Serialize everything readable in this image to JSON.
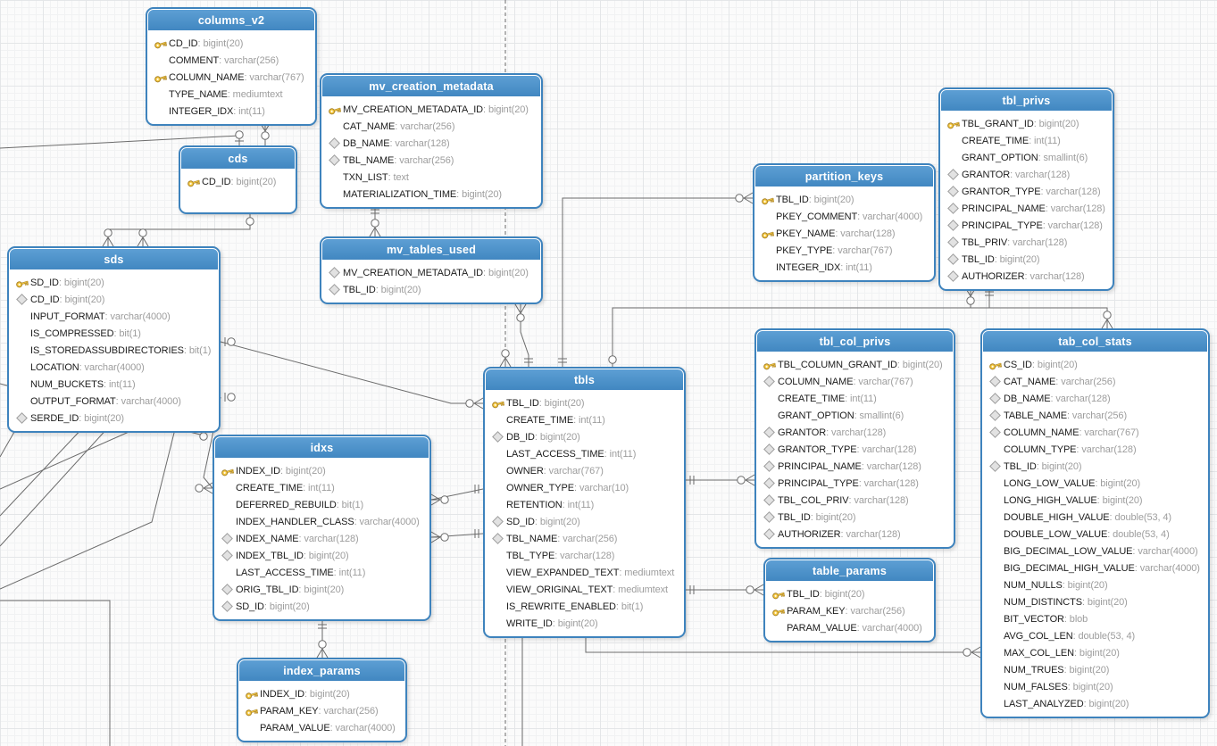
{
  "diagram": {
    "colors": {
      "table_header": "#4187c1",
      "table_header_light": "#5d9fd4",
      "table_border": "#3e83bd",
      "primary_key_icon": "#f7c93e",
      "foreign_key_icon": "#e2e2e2",
      "relationship_line": "#6b6b6b"
    },
    "tables": [
      {
        "name": "columns_v2",
        "columns": [
          {
            "key": "pk",
            "name": "CD_ID",
            "type": "bigint(20)"
          },
          {
            "key": "",
            "name": "COMMENT",
            "type": "varchar(256)"
          },
          {
            "key": "pk",
            "name": "COLUMN_NAME",
            "type": "varchar(767)"
          },
          {
            "key": "",
            "name": "TYPE_NAME",
            "type": "mediumtext"
          },
          {
            "key": "",
            "name": "INTEGER_IDX",
            "type": "int(11)"
          }
        ]
      },
      {
        "name": "cds",
        "columns": [
          {
            "key": "pk",
            "name": "CD_ID",
            "type": "bigint(20)"
          }
        ]
      },
      {
        "name": "mv_creation_metadata",
        "columns": [
          {
            "key": "pk",
            "name": "MV_CREATION_METADATA_ID",
            "type": "bigint(20)"
          },
          {
            "key": "",
            "name": "CAT_NAME",
            "type": "varchar(256)"
          },
          {
            "key": "fk",
            "name": "DB_NAME",
            "type": "varchar(128)"
          },
          {
            "key": "fk",
            "name": "TBL_NAME",
            "type": "varchar(256)"
          },
          {
            "key": "",
            "name": "TXN_LIST",
            "type": "text"
          },
          {
            "key": "",
            "name": "MATERIALIZATION_TIME",
            "type": "bigint(20)"
          }
        ]
      },
      {
        "name": "mv_tables_used",
        "columns": [
          {
            "key": "fk",
            "name": "MV_CREATION_METADATA_ID",
            "type": "bigint(20)"
          },
          {
            "key": "fk",
            "name": "TBL_ID",
            "type": "bigint(20)"
          }
        ]
      },
      {
        "name": "sds",
        "columns": [
          {
            "key": "pk",
            "name": "SD_ID",
            "type": "bigint(20)"
          },
          {
            "key": "fk",
            "name": "CD_ID",
            "type": "bigint(20)"
          },
          {
            "key": "",
            "name": "INPUT_FORMAT",
            "type": "varchar(4000)"
          },
          {
            "key": "",
            "name": "IS_COMPRESSED",
            "type": "bit(1)"
          },
          {
            "key": "",
            "name": "IS_STOREDASSUBDIRECTORIES",
            "type": "bit(1)"
          },
          {
            "key": "",
            "name": "LOCATION",
            "type": "varchar(4000)"
          },
          {
            "key": "",
            "name": "NUM_BUCKETS",
            "type": "int(11)"
          },
          {
            "key": "",
            "name": "OUTPUT_FORMAT",
            "type": "varchar(4000)"
          },
          {
            "key": "fk",
            "name": "SERDE_ID",
            "type": "bigint(20)"
          }
        ]
      },
      {
        "name": "idxs",
        "columns": [
          {
            "key": "pk",
            "name": "INDEX_ID",
            "type": "bigint(20)"
          },
          {
            "key": "",
            "name": "CREATE_TIME",
            "type": "int(11)"
          },
          {
            "key": "",
            "name": "DEFERRED_REBUILD",
            "type": "bit(1)"
          },
          {
            "key": "",
            "name": "INDEX_HANDLER_CLASS",
            "type": "varchar(4000)"
          },
          {
            "key": "fk",
            "name": "INDEX_NAME",
            "type": "varchar(128)"
          },
          {
            "key": "fk",
            "name": "INDEX_TBL_ID",
            "type": "bigint(20)"
          },
          {
            "key": "",
            "name": "LAST_ACCESS_TIME",
            "type": "int(11)"
          },
          {
            "key": "fk",
            "name": "ORIG_TBL_ID",
            "type": "bigint(20)"
          },
          {
            "key": "fk",
            "name": "SD_ID",
            "type": "bigint(20)"
          }
        ]
      },
      {
        "name": "index_params",
        "columns": [
          {
            "key": "pk",
            "name": "INDEX_ID",
            "type": "bigint(20)"
          },
          {
            "key": "pk",
            "name": "PARAM_KEY",
            "type": "varchar(256)"
          },
          {
            "key": "",
            "name": "PARAM_VALUE",
            "type": "varchar(4000)"
          }
        ]
      },
      {
        "name": "tbls",
        "columns": [
          {
            "key": "pk",
            "name": "TBL_ID",
            "type": "bigint(20)"
          },
          {
            "key": "",
            "name": "CREATE_TIME",
            "type": "int(11)"
          },
          {
            "key": "fk",
            "name": "DB_ID",
            "type": "bigint(20)"
          },
          {
            "key": "",
            "name": "LAST_ACCESS_TIME",
            "type": "int(11)"
          },
          {
            "key": "",
            "name": "OWNER",
            "type": "varchar(767)"
          },
          {
            "key": "",
            "name": "OWNER_TYPE",
            "type": "varchar(10)"
          },
          {
            "key": "",
            "name": "RETENTION",
            "type": "int(11)"
          },
          {
            "key": "fk",
            "name": "SD_ID",
            "type": "bigint(20)"
          },
          {
            "key": "fk",
            "name": "TBL_NAME",
            "type": "varchar(256)"
          },
          {
            "key": "",
            "name": "TBL_TYPE",
            "type": "varchar(128)"
          },
          {
            "key": "",
            "name": "VIEW_EXPANDED_TEXT",
            "type": "mediumtext"
          },
          {
            "key": "",
            "name": "VIEW_ORIGINAL_TEXT",
            "type": "mediumtext"
          },
          {
            "key": "",
            "name": "IS_REWRITE_ENABLED",
            "type": "bit(1)"
          },
          {
            "key": "",
            "name": "WRITE_ID",
            "type": "bigint(20)"
          }
        ]
      },
      {
        "name": "partition_keys",
        "columns": [
          {
            "key": "pk",
            "name": "TBL_ID",
            "type": "bigint(20)"
          },
          {
            "key": "",
            "name": "PKEY_COMMENT",
            "type": "varchar(4000)"
          },
          {
            "key": "pk",
            "name": "PKEY_NAME",
            "type": "varchar(128)"
          },
          {
            "key": "",
            "name": "PKEY_TYPE",
            "type": "varchar(767)"
          },
          {
            "key": "",
            "name": "INTEGER_IDX",
            "type": "int(11)"
          }
        ]
      },
      {
        "name": "tbl_col_privs",
        "columns": [
          {
            "key": "pk",
            "name": "TBL_COLUMN_GRANT_ID",
            "type": "bigint(20)"
          },
          {
            "key": "fk",
            "name": "COLUMN_NAME",
            "type": "varchar(767)"
          },
          {
            "key": "",
            "name": "CREATE_TIME",
            "type": "int(11)"
          },
          {
            "key": "",
            "name": "GRANT_OPTION",
            "type": "smallint(6)"
          },
          {
            "key": "fk",
            "name": "GRANTOR",
            "type": "varchar(128)"
          },
          {
            "key": "fk",
            "name": "GRANTOR_TYPE",
            "type": "varchar(128)"
          },
          {
            "key": "fk",
            "name": "PRINCIPAL_NAME",
            "type": "varchar(128)"
          },
          {
            "key": "fk",
            "name": "PRINCIPAL_TYPE",
            "type": "varchar(128)"
          },
          {
            "key": "fk",
            "name": "TBL_COL_PRIV",
            "type": "varchar(128)"
          },
          {
            "key": "fk",
            "name": "TBL_ID",
            "type": "bigint(20)"
          },
          {
            "key": "fk",
            "name": "AUTHORIZER",
            "type": "varchar(128)"
          }
        ]
      },
      {
        "name": "table_params",
        "columns": [
          {
            "key": "pk",
            "name": "TBL_ID",
            "type": "bigint(20)"
          },
          {
            "key": "pk",
            "name": "PARAM_KEY",
            "type": "varchar(256)"
          },
          {
            "key": "",
            "name": "PARAM_VALUE",
            "type": "varchar(4000)"
          }
        ]
      },
      {
        "name": "tbl_privs",
        "columns": [
          {
            "key": "pk",
            "name": "TBL_GRANT_ID",
            "type": "bigint(20)"
          },
          {
            "key": "",
            "name": "CREATE_TIME",
            "type": "int(11)"
          },
          {
            "key": "",
            "name": "GRANT_OPTION",
            "type": "smallint(6)"
          },
          {
            "key": "fk",
            "name": "GRANTOR",
            "type": "varchar(128)"
          },
          {
            "key": "fk",
            "name": "GRANTOR_TYPE",
            "type": "varchar(128)"
          },
          {
            "key": "fk",
            "name": "PRINCIPAL_NAME",
            "type": "varchar(128)"
          },
          {
            "key": "fk",
            "name": "PRINCIPAL_TYPE",
            "type": "varchar(128)"
          },
          {
            "key": "fk",
            "name": "TBL_PRIV",
            "type": "varchar(128)"
          },
          {
            "key": "fk",
            "name": "TBL_ID",
            "type": "bigint(20)"
          },
          {
            "key": "fk",
            "name": "AUTHORIZER",
            "type": "varchar(128)"
          }
        ]
      },
      {
        "name": "tab_col_stats",
        "columns": [
          {
            "key": "pk",
            "name": "CS_ID",
            "type": "bigint(20)"
          },
          {
            "key": "fk",
            "name": "CAT_NAME",
            "type": "varchar(256)"
          },
          {
            "key": "fk",
            "name": "DB_NAME",
            "type": "varchar(128)"
          },
          {
            "key": "fk",
            "name": "TABLE_NAME",
            "type": "varchar(256)"
          },
          {
            "key": "fk",
            "name": "COLUMN_NAME",
            "type": "varchar(767)"
          },
          {
            "key": "",
            "name": "COLUMN_TYPE",
            "type": "varchar(128)"
          },
          {
            "key": "fk",
            "name": "TBL_ID",
            "type": "bigint(20)"
          },
          {
            "key": "",
            "name": "LONG_LOW_VALUE",
            "type": "bigint(20)"
          },
          {
            "key": "",
            "name": "LONG_HIGH_VALUE",
            "type": "bigint(20)"
          },
          {
            "key": "",
            "name": "DOUBLE_HIGH_VALUE",
            "type": "double(53, 4)"
          },
          {
            "key": "",
            "name": "DOUBLE_LOW_VALUE",
            "type": "double(53, 4)"
          },
          {
            "key": "",
            "name": "BIG_DECIMAL_LOW_VALUE",
            "type": "varchar(4000)"
          },
          {
            "key": "",
            "name": "BIG_DECIMAL_HIGH_VALUE",
            "type": "varchar(4000)"
          },
          {
            "key": "",
            "name": "NUM_NULLS",
            "type": "bigint(20)"
          },
          {
            "key": "",
            "name": "NUM_DISTINCTS",
            "type": "bigint(20)"
          },
          {
            "key": "",
            "name": "BIT_VECTOR",
            "type": "blob"
          },
          {
            "key": "",
            "name": "AVG_COL_LEN",
            "type": "double(53, 4)"
          },
          {
            "key": "",
            "name": "MAX_COL_LEN",
            "type": "bigint(20)"
          },
          {
            "key": "",
            "name": "NUM_TRUES",
            "type": "bigint(20)"
          },
          {
            "key": "",
            "name": "NUM_FALSES",
            "type": "bigint(20)"
          },
          {
            "key": "",
            "name": "LAST_ANALYZED",
            "type": "bigint(20)"
          }
        ]
      }
    ]
  }
}
